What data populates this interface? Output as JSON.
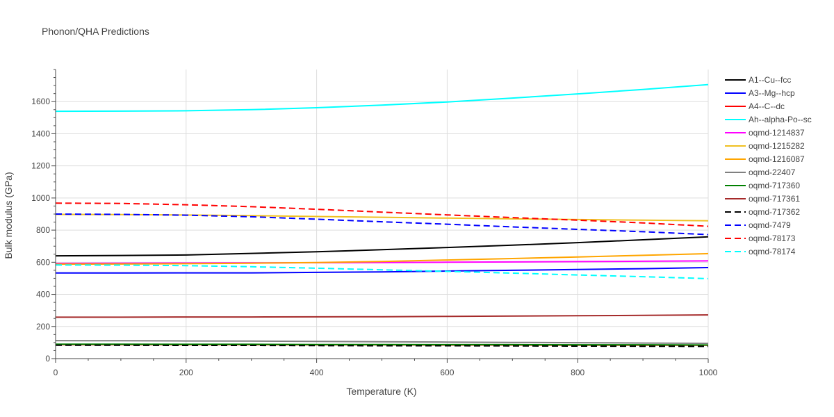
{
  "chart_data": {
    "type": "line",
    "title": "Phonon/QHA Predictions",
    "xlabel": "Temperature (K)",
    "ylabel": "Bulk modulus (GPa)",
    "xlim": [
      0,
      1000
    ],
    "ylim": [
      0,
      1800
    ],
    "xticks": [
      0,
      200,
      400,
      600,
      800,
      1000
    ],
    "yticks": [
      0,
      200,
      400,
      600,
      800,
      1000,
      1200,
      1400,
      1600
    ],
    "grid": true,
    "legend_position": "right",
    "x": [
      0,
      100,
      200,
      300,
      400,
      500,
      600,
      700,
      800,
      900,
      1000
    ],
    "series": [
      {
        "name": "A1--Cu--fcc",
        "color": "#000000",
        "dash": "solid",
        "values": [
          640,
          642,
          645,
          655,
          665,
          678,
          692,
          706,
          722,
          740,
          758
        ]
      },
      {
        "name": "A3--Mg--hcp",
        "color": "#0000ff",
        "dash": "solid",
        "values": [
          533,
          533,
          534,
          534,
          537,
          540,
          545,
          550,
          555,
          560,
          567
        ]
      },
      {
        "name": "A4--C--dc",
        "color": "#ff0000",
        "dash": "solid",
        "values": [
          88,
          88,
          87,
          87,
          86,
          86,
          85,
          85,
          84,
          84,
          83
        ]
      },
      {
        "name": "Ah--alpha-Po--sc",
        "color": "#00ffff",
        "dash": "solid",
        "values": [
          1540,
          1541,
          1543,
          1550,
          1562,
          1578,
          1598,
          1622,
          1648,
          1676,
          1706
        ]
      },
      {
        "name": "oqmd-1214837",
        "color": "#ff00ff",
        "dash": "solid",
        "values": [
          593,
          594,
          595,
          596,
          597,
          598,
          600,
          602,
          604,
          606,
          609
        ]
      },
      {
        "name": "oqmd-1215282",
        "color": "#f0c020",
        "dash": "solid",
        "values": [
          898,
          897,
          894,
          890,
          885,
          880,
          875,
          870,
          866,
          862,
          858
        ]
      },
      {
        "name": "oqmd-1216087",
        "color": "#ffa500",
        "dash": "solid",
        "values": [
          588,
          589,
          591,
          594,
          598,
          605,
          614,
          623,
          633,
          643,
          654
        ]
      },
      {
        "name": "oqmd-22407",
        "color": "#808080",
        "dash": "solid",
        "values": [
          112,
          111,
          110,
          109,
          107,
          105,
          103,
          101,
          99,
          97,
          95
        ]
      },
      {
        "name": "oqmd-717360",
        "color": "#008000",
        "dash": "solid",
        "values": [
          90,
          90,
          89,
          89,
          88,
          88,
          87,
          87,
          86,
          86,
          85
        ]
      },
      {
        "name": "oqmd-717361",
        "color": "#a52a2a",
        "dash": "solid",
        "values": [
          258,
          258,
          259,
          259,
          260,
          261,
          263,
          265,
          267,
          269,
          272
        ]
      },
      {
        "name": "oqmd-717362",
        "color": "#000000",
        "dash": "dash",
        "values": [
          83,
          83,
          82,
          82,
          81,
          80,
          80,
          79,
          78,
          77,
          76
        ]
      },
      {
        "name": "oqmd-7479",
        "color": "#0000ff",
        "dash": "dash",
        "values": [
          900,
          898,
          893,
          883,
          868,
          852,
          837,
          820,
          805,
          790,
          772
        ]
      },
      {
        "name": "oqmd-78173",
        "color": "#ff0000",
        "dash": "dash",
        "values": [
          968,
          966,
          958,
          946,
          930,
          912,
          895,
          878,
          862,
          845,
          824
        ]
      },
      {
        "name": "oqmd-78174",
        "color": "#00ffff",
        "dash": "dash",
        "values": [
          583,
          582,
          579,
          572,
          563,
          553,
          543,
          532,
          521,
          510,
          498
        ]
      }
    ]
  }
}
